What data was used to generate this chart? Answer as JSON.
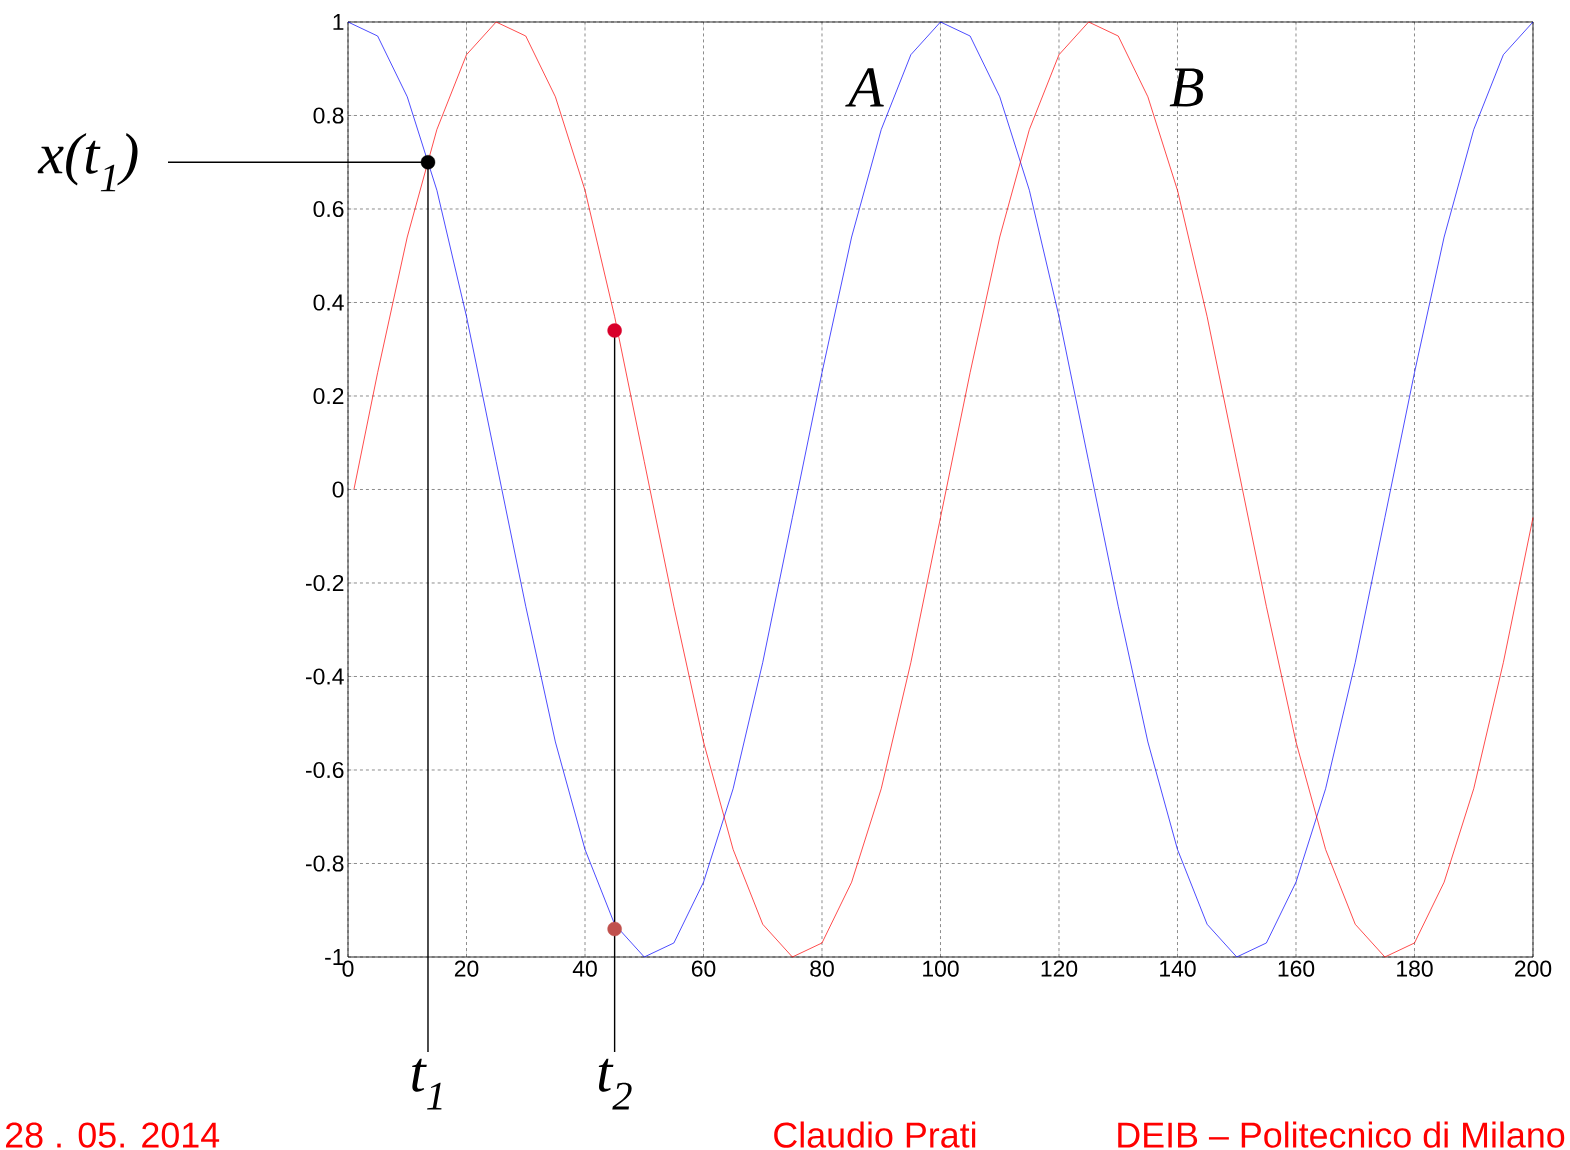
{
  "chart_data": {
    "type": "line",
    "xlim": [
      0,
      200
    ],
    "ylim": [
      -1,
      1
    ],
    "xticks": [
      0,
      20,
      40,
      60,
      80,
      100,
      120,
      140,
      160,
      180,
      200
    ],
    "yticks": [
      -1,
      -0.8,
      -0.6,
      -0.4,
      -0.2,
      0,
      0.2,
      0.4,
      0.6,
      0.8,
      1
    ],
    "grid": true,
    "x": [
      0,
      5,
      10,
      15,
      20,
      25,
      30,
      35,
      40,
      45,
      50,
      55,
      60,
      65,
      70,
      75,
      80,
      85,
      90,
      95,
      100,
      105,
      110,
      115,
      120,
      125,
      130,
      135,
      140,
      145,
      150,
      155,
      160,
      165,
      170,
      175,
      180,
      185,
      190,
      195,
      200
    ],
    "series": [
      {
        "name": "A",
        "color": "#0000ff",
        "values": [
          1.0,
          0.97,
          0.84,
          0.64,
          0.37,
          0.06,
          -0.25,
          -0.54,
          -0.77,
          -0.93,
          -1.0,
          -0.97,
          -0.84,
          -0.64,
          -0.37,
          -0.06,
          0.25,
          0.54,
          0.77,
          0.93,
          1.0,
          0.97,
          0.84,
          0.64,
          0.37,
          0.06,
          -0.25,
          -0.54,
          -0.77,
          -0.93,
          -1.0,
          -0.97,
          -0.84,
          -0.64,
          -0.37,
          -0.06,
          0.25,
          0.54,
          0.77,
          0.93,
          1.0
        ]
      },
      {
        "name": "B",
        "color": "#ff0000",
        "x": [
          1,
          5,
          10,
          15,
          20,
          25,
          30,
          35,
          40,
          45,
          50,
          55,
          60,
          65,
          70,
          75,
          80,
          85,
          90,
          95,
          100,
          105,
          110,
          115,
          120,
          125,
          130,
          135,
          140,
          145,
          150,
          155,
          160,
          165,
          170,
          175,
          180,
          185,
          190,
          195,
          200
        ],
        "values": [
          0,
          0.25,
          0.54,
          0.77,
          0.93,
          1.0,
          0.97,
          0.84,
          0.64,
          0.37,
          0.06,
          -0.25,
          -0.54,
          -0.77,
          -0.93,
          -1.0,
          -0.97,
          -0.84,
          -0.64,
          -0.37,
          -0.06,
          0.25,
          0.54,
          0.77,
          0.93,
          1.0,
          0.97,
          0.84,
          0.64,
          0.37,
          0.06,
          -0.25,
          -0.54,
          -0.77,
          -0.93,
          -1.0,
          -0.97,
          -0.84,
          -0.64,
          -0.37,
          -0.06
        ]
      },
      {
        "type": "scatter",
        "x": [
          13.5,
          45,
          45
        ],
        "values": [
          0.7,
          0.34,
          -0.94
        ],
        "colors": [
          "#000000",
          "#d9002a",
          "#c0504d"
        ]
      }
    ],
    "annotations": [
      "x(t$_{1}$)",
      {
        "text": "t$_{1}$",
        "x": 13.5,
        "y": 0.7
      },
      {
        "text": "t$_{2}$",
        "x": 45,
        "y": 0.34
      },
      "28 . 05. 2014",
      "Claudio Prati",
      "DEIB – Politecnico di Milano"
    ]
  }
}
